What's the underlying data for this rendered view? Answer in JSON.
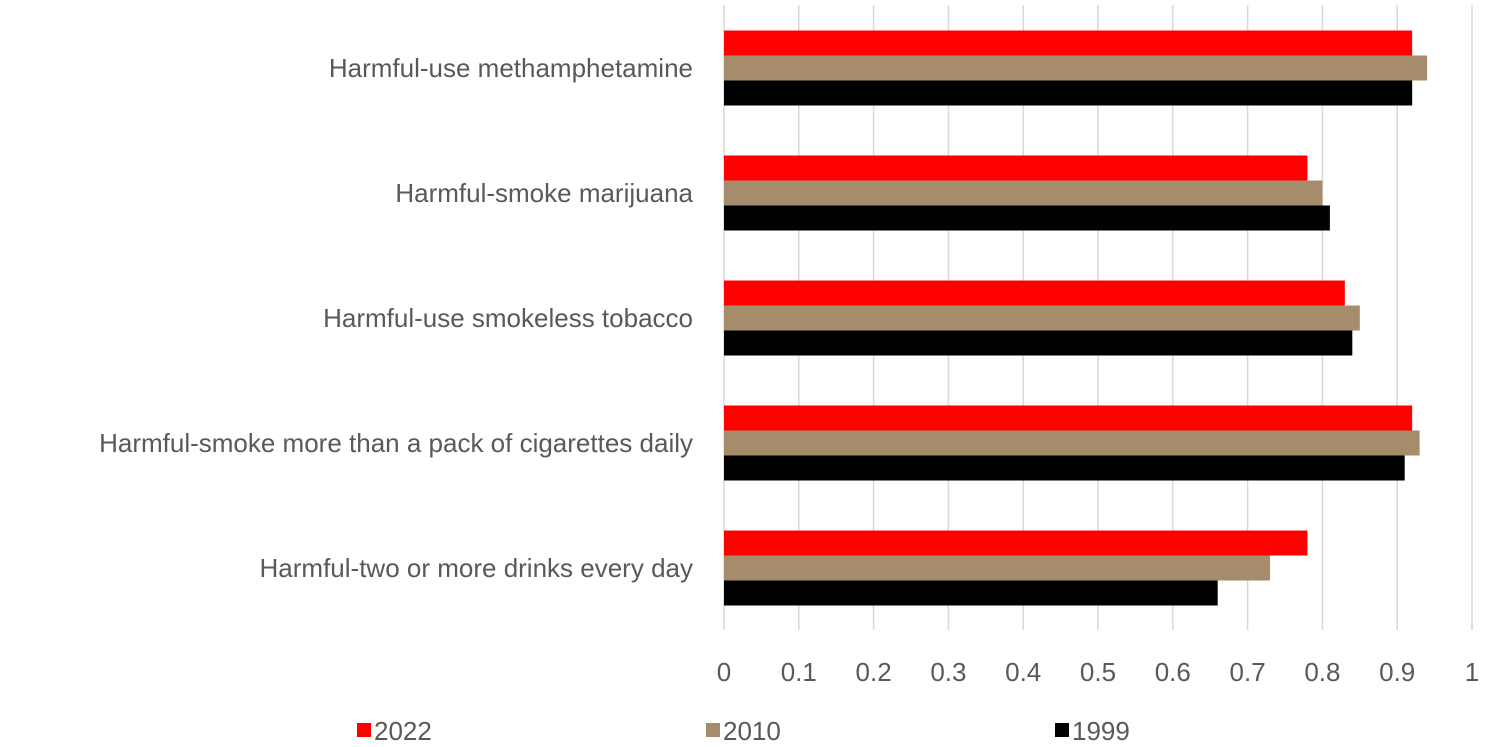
{
  "chart_data": {
    "type": "bar",
    "orientation": "horizontal",
    "categories": [
      "Harmful-use methamphetamine",
      "Harmful-smoke marijuana",
      "Harmful-use smokeless tobacco",
      "Harmful-smoke more than a pack of cigarettes daily",
      "Harmful-two or more drinks every day"
    ],
    "series": [
      {
        "name": "2022",
        "color": "#ff0000",
        "values": [
          0.92,
          0.78,
          0.83,
          0.92,
          0.78
        ]
      },
      {
        "name": "2010",
        "color": "#a58c6a",
        "values": [
          0.94,
          0.8,
          0.85,
          0.93,
          0.73
        ]
      },
      {
        "name": "1999",
        "color": "#000000",
        "values": [
          0.92,
          0.81,
          0.84,
          0.91,
          0.66
        ]
      }
    ],
    "xlim": [
      0,
      1
    ],
    "xticks": [
      "0",
      "0.1",
      "0.2",
      "0.3",
      "0.4",
      "0.5",
      "0.6",
      "0.7",
      "0.8",
      "0.9",
      "1"
    ],
    "grid": true,
    "legend_position": "bottom"
  }
}
